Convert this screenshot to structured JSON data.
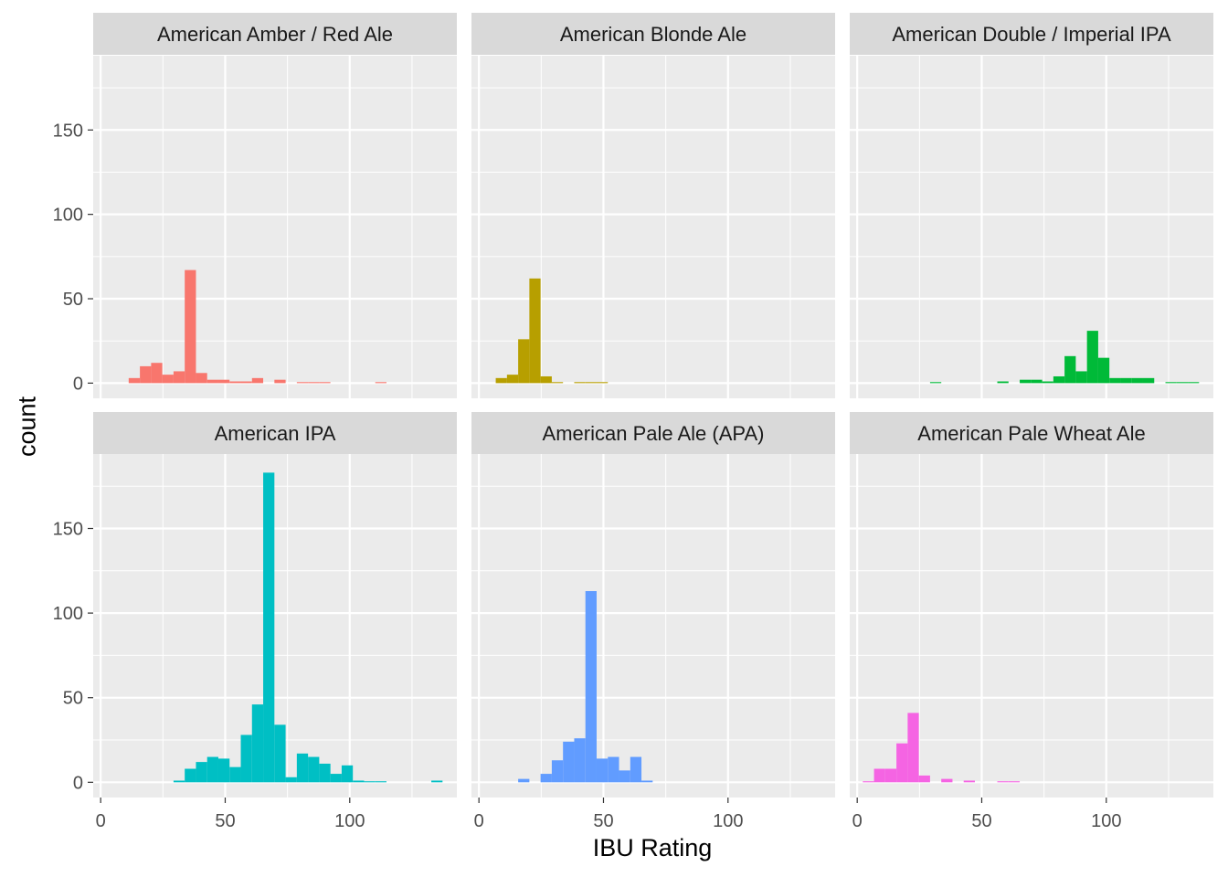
{
  "chart_data": {
    "type": "bar",
    "subtype": "faceted-histogram",
    "xlabel": "IBU Rating",
    "ylabel": "count",
    "xlim": [
      -3,
      143
    ],
    "ylim": [
      -9,
      194
    ],
    "x_ticks": [
      0,
      50,
      100
    ],
    "y_ticks": [
      0,
      50,
      100,
      150
    ],
    "bin_width": 4.5,
    "grid": true,
    "legend": "none",
    "panel_background": "#ebebeb",
    "strip_background": "#d9d9d9",
    "facets": [
      {
        "name": "American Amber / Red Ale",
        "color": "#f8766d",
        "bins": [
          {
            "x": 13.5,
            "count": 3
          },
          {
            "x": 18,
            "count": 10
          },
          {
            "x": 22.5,
            "count": 12
          },
          {
            "x": 27,
            "count": 5
          },
          {
            "x": 31.5,
            "count": 7
          },
          {
            "x": 36,
            "count": 67
          },
          {
            "x": 40.5,
            "count": 6
          },
          {
            "x": 45,
            "count": 2
          },
          {
            "x": 49.5,
            "count": 2
          },
          {
            "x": 54,
            "count": 1
          },
          {
            "x": 58.5,
            "count": 1
          },
          {
            "x": 63,
            "count": 3
          },
          {
            "x": 72,
            "count": 2
          },
          {
            "x": 81,
            "count": 0.6
          },
          {
            "x": 85.5,
            "count": 0.6
          },
          {
            "x": 90,
            "count": 0.6
          },
          {
            "x": 112.5,
            "count": 0.6
          }
        ]
      },
      {
        "name": "American Blonde Ale",
        "color": "#b79f00",
        "bins": [
          {
            "x": 9,
            "count": 3
          },
          {
            "x": 13.5,
            "count": 5
          },
          {
            "x": 18,
            "count": 26
          },
          {
            "x": 22.5,
            "count": 62
          },
          {
            "x": 27,
            "count": 4
          },
          {
            "x": 31.5,
            "count": 0.6
          },
          {
            "x": 40.5,
            "count": 0.6
          },
          {
            "x": 45,
            "count": 0.6
          },
          {
            "x": 49.5,
            "count": 0.6
          }
        ]
      },
      {
        "name": "American Double / Imperial IPA",
        "color": "#00ba38",
        "bins": [
          {
            "x": 31.5,
            "count": 0.6
          },
          {
            "x": 58.5,
            "count": 1
          },
          {
            "x": 67.5,
            "count": 2
          },
          {
            "x": 72,
            "count": 2
          },
          {
            "x": 76.5,
            "count": 1
          },
          {
            "x": 81,
            "count": 4
          },
          {
            "x": 85.5,
            "count": 16
          },
          {
            "x": 90,
            "count": 7
          },
          {
            "x": 94.5,
            "count": 31
          },
          {
            "x": 99,
            "count": 15
          },
          {
            "x": 103.5,
            "count": 3
          },
          {
            "x": 108,
            "count": 3
          },
          {
            "x": 112.5,
            "count": 3
          },
          {
            "x": 117,
            "count": 3
          },
          {
            "x": 126,
            "count": 0.6
          },
          {
            "x": 130.5,
            "count": 0.6
          },
          {
            "x": 135,
            "count": 0.6
          }
        ]
      },
      {
        "name": "American IPA",
        "color": "#00bfc4",
        "bins": [
          {
            "x": 31.5,
            "count": 1
          },
          {
            "x": 36,
            "count": 8
          },
          {
            "x": 40.5,
            "count": 12
          },
          {
            "x": 45,
            "count": 15
          },
          {
            "x": 49.5,
            "count": 14
          },
          {
            "x": 54,
            "count": 9
          },
          {
            "x": 58.5,
            "count": 28
          },
          {
            "x": 63,
            "count": 46
          },
          {
            "x": 67.5,
            "count": 183
          },
          {
            "x": 72,
            "count": 34
          },
          {
            "x": 76.5,
            "count": 3
          },
          {
            "x": 81,
            "count": 17
          },
          {
            "x": 85.5,
            "count": 15
          },
          {
            "x": 90,
            "count": 11
          },
          {
            "x": 94.5,
            "count": 5
          },
          {
            "x": 99,
            "count": 10
          },
          {
            "x": 103.5,
            "count": 1
          },
          {
            "x": 108,
            "count": 0.6
          },
          {
            "x": 112.5,
            "count": 0.6
          },
          {
            "x": 135,
            "count": 1
          }
        ]
      },
      {
        "name": "American Pale Ale (APA)",
        "color": "#619cff",
        "bins": [
          {
            "x": 18,
            "count": 2
          },
          {
            "x": 27,
            "count": 5
          },
          {
            "x": 31.5,
            "count": 13
          },
          {
            "x": 36,
            "count": 24
          },
          {
            "x": 40.5,
            "count": 26
          },
          {
            "x": 45,
            "count": 113
          },
          {
            "x": 49.5,
            "count": 14
          },
          {
            "x": 54,
            "count": 15
          },
          {
            "x": 58.5,
            "count": 7
          },
          {
            "x": 63,
            "count": 15
          },
          {
            "x": 67.5,
            "count": 1
          }
        ]
      },
      {
        "name": "American Pale Wheat Ale",
        "color": "#f564e3",
        "bins": [
          {
            "x": 4.5,
            "count": 0.6
          },
          {
            "x": 9,
            "count": 8
          },
          {
            "x": 13.5,
            "count": 8
          },
          {
            "x": 18,
            "count": 23
          },
          {
            "x": 22.5,
            "count": 41
          },
          {
            "x": 27,
            "count": 4
          },
          {
            "x": 36,
            "count": 2
          },
          {
            "x": 45,
            "count": 1
          },
          {
            "x": 58.5,
            "count": 0.6
          },
          {
            "x": 63,
            "count": 0.6
          }
        ]
      }
    ]
  }
}
